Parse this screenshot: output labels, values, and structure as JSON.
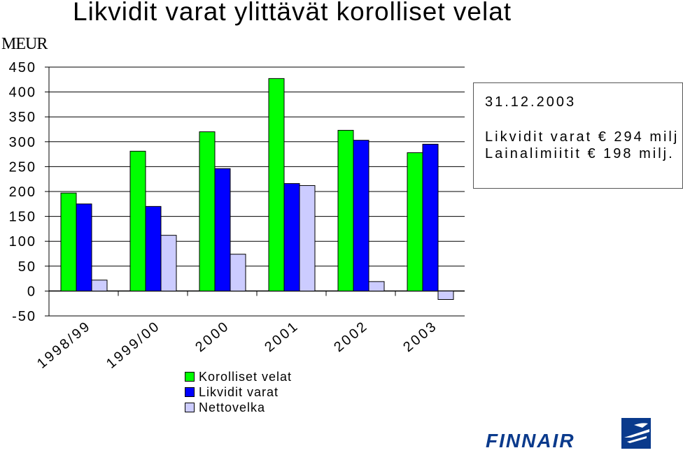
{
  "chart_data": {
    "type": "bar",
    "title": "Likvidit varat ylittävät korolliset velat",
    "unit": "MEUR",
    "categories": [
      "1998/99",
      "1999/00",
      "2000",
      "2001",
      "2002",
      "2003"
    ],
    "series": [
      {
        "name": "Korolliset velat",
        "color": "#00FF00",
        "values": [
          197,
          281,
          320,
          427,
          323,
          278
        ]
      },
      {
        "name": "Likvidit varat",
        "color": "#0000FF",
        "values": [
          175,
          170,
          246,
          216,
          303,
          295
        ]
      },
      {
        "name": "Nettovelka",
        "color": "#CCCCFF",
        "values": [
          22,
          112,
          74,
          212,
          19,
          -17
        ]
      }
    ],
    "yticks": [
      "450",
      "400",
      "350",
      "300",
      "250",
      "200",
      "150",
      "100",
      "50",
      "0",
      "-50"
    ],
    "ylim": [
      -50,
      450
    ],
    "grid": true,
    "legend_position": "bottom"
  },
  "info_box": {
    "date": "31.12.2003",
    "line1": "Likvidit varat € 294 milj",
    "line2": "Lainalimiitit € 198 milj."
  },
  "logo": {
    "text": "FINNAIR",
    "color": "#0A3A8C"
  }
}
